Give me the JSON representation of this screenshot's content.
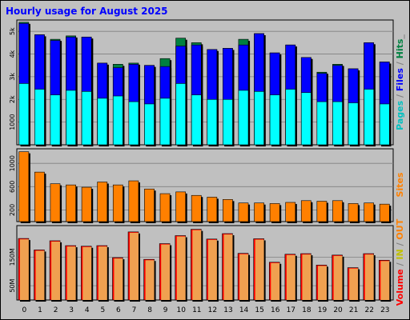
{
  "title": "Hourly usage for August 2025",
  "colors": {
    "background": "#c0c0c0",
    "plot_bg": "#c0c0c0",
    "pages": "#00ffff",
    "files": "#0000ff",
    "hits": "#008040",
    "visits": "#ff8000",
    "sites": "#ff8000",
    "kbytes": "#ff0000",
    "kbytes_in": "#f0a050",
    "kbytes_out": "#ffa050"
  },
  "side_labels": {
    "top": [
      {
        "text": "Pages",
        "color": "#00c0c0"
      },
      {
        "text": " / ",
        "color": "#808080"
      },
      {
        "text": "Files",
        "color": "#0000ff"
      },
      {
        "text": " / ",
        "color": "#808080"
      },
      {
        "text": "Hits",
        "color": "#008040"
      },
      {
        "text": "_",
        "color": "#808080"
      }
    ],
    "middle": [
      {
        "text": "Sites",
        "color": "#ff8000"
      }
    ],
    "bottom": [
      {
        "text": "Volume",
        "color": "#ff0000"
      },
      {
        "text": " / ",
        "color": "#808080"
      },
      {
        "text": "IN",
        "color": "#c0c000"
      },
      {
        "text": " / ",
        "color": "#808080"
      },
      {
        "text": "OUT",
        "color": "#ff8000"
      }
    ]
  },
  "chart_data": [
    {
      "type": "bar",
      "panel": "hits-files-pages",
      "categories": [
        "0",
        "1",
        "2",
        "3",
        "4",
        "5",
        "6",
        "7",
        "8",
        "9",
        "10",
        "11",
        "12",
        "13",
        "14",
        "15",
        "16",
        "17",
        "18",
        "19",
        "20",
        "21",
        "22",
        "23"
      ],
      "ylim": [
        0,
        5500
      ],
      "yticks": [
        1000,
        2000,
        3000,
        4000,
        5000
      ],
      "ytick_labels": [
        "1000",
        "2k",
        "3k",
        "4k",
        "5k"
      ],
      "series": [
        {
          "key": "hits",
          "values": [
            5400,
            4850,
            4650,
            4800,
            4750,
            3600,
            3550,
            3600,
            3500,
            3800,
            4700,
            4500,
            4200,
            4250,
            4650,
            4900,
            4050,
            4400,
            3850,
            3200,
            3550,
            3350,
            4500,
            3650
          ]
        },
        {
          "key": "files",
          "values": [
            5350,
            4850,
            4600,
            4750,
            4750,
            3600,
            3400,
            3550,
            3500,
            3450,
            4350,
            4400,
            4200,
            4250,
            4400,
            4900,
            4050,
            4400,
            3850,
            3150,
            3500,
            3350,
            4500,
            3650
          ]
        },
        {
          "key": "pages",
          "values": [
            2700,
            2450,
            2200,
            2400,
            2350,
            2050,
            2150,
            1900,
            1800,
            2050,
            2700,
            2200,
            2000,
            2000,
            2400,
            2350,
            2200,
            2450,
            2300,
            1900,
            1900,
            1850,
            2450,
            1800
          ]
        }
      ]
    },
    {
      "type": "bar",
      "panel": "sites",
      "categories": [
        "0",
        "1",
        "2",
        "3",
        "4",
        "5",
        "6",
        "7",
        "8",
        "9",
        "10",
        "11",
        "12",
        "13",
        "14",
        "15",
        "16",
        "17",
        "18",
        "19",
        "20",
        "21",
        "22",
        "23"
      ],
      "ylim": [
        0,
        1250
      ],
      "yticks": [
        200,
        600,
        1000
      ],
      "ytick_labels": [
        "200",
        "600",
        "1000"
      ],
      "series": [
        {
          "key": "sites",
          "values": [
            1200,
            850,
            650,
            630,
            590,
            680,
            630,
            700,
            560,
            480,
            510,
            450,
            420,
            380,
            320,
            320,
            310,
            330,
            360,
            350,
            360,
            310,
            320,
            300
          ]
        }
      ]
    },
    {
      "type": "bar",
      "panel": "volume",
      "categories": [
        "0",
        "1",
        "2",
        "3",
        "4",
        "5",
        "6",
        "7",
        "8",
        "9",
        "10",
        "11",
        "12",
        "13",
        "14",
        "15",
        "16",
        "17",
        "18",
        "19",
        "20",
        "21",
        "22",
        "23"
      ],
      "ylim": [
        0,
        260
      ],
      "yticks": [
        50,
        150
      ],
      "ytick_labels": [
        "50M",
        "150M"
      ],
      "series": [
        {
          "key": "kbytes",
          "values": [
            215,
            175,
            207,
            190,
            188,
            190,
            148,
            238,
            142,
            197,
            225,
            247,
            213,
            232,
            163,
            214,
            132,
            160,
            162,
            122,
            157,
            113,
            162,
            139
          ]
        },
        {
          "key": "kbytes_in",
          "values": [
            212,
            172,
            204,
            187,
            185,
            187,
            145,
            235,
            139,
            194,
            222,
            244,
            210,
            229,
            160,
            211,
            129,
            157,
            159,
            119,
            154,
            110,
            159,
            136
          ]
        }
      ]
    }
  ]
}
